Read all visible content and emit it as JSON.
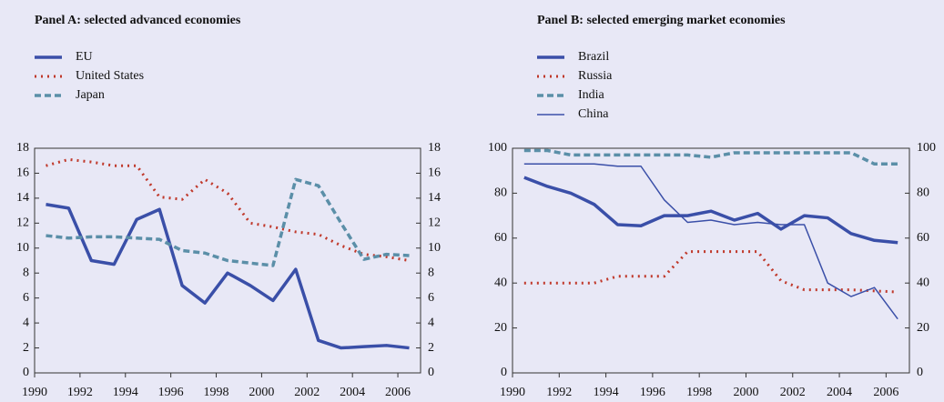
{
  "chart_data": [
    {
      "type": "line",
      "title": "Panel A: selected advanced economies",
      "x": [
        1990.5,
        1991.5,
        1992.5,
        1993.5,
        1994.5,
        1995.5,
        1996.5,
        1997.5,
        1998.5,
        1999.5,
        2000.5,
        2001.5,
        2002.5,
        2003.5,
        2004.5,
        2005.5,
        2006.5
      ],
      "series": [
        {
          "name": "EU",
          "color": "#3a4fa8",
          "style": "solid",
          "width": 3.5,
          "values": [
            13.5,
            13.2,
            9.0,
            8.7,
            12.3,
            13.1,
            7.0,
            5.6,
            8.0,
            7.0,
            5.8,
            8.3,
            2.6,
            2.0,
            2.1,
            2.2,
            2.0
          ]
        },
        {
          "name": "United States",
          "color": "#c0392b",
          "style": "dotted",
          "width": 3,
          "values": [
            16.6,
            17.1,
            16.9,
            16.6,
            16.6,
            14.1,
            13.9,
            15.5,
            14.4,
            12.0,
            11.7,
            11.3,
            11.1,
            10.2,
            9.5,
            9.3,
            9.0
          ]
        },
        {
          "name": "Japan",
          "color": "#5b8fa8",
          "style": "dashed",
          "width": 3.5,
          "values": [
            11.0,
            10.8,
            10.9,
            10.9,
            10.8,
            10.7,
            9.8,
            9.6,
            9.0,
            8.8,
            8.6,
            15.5,
            15.0,
            12.0,
            9.1,
            9.5,
            9.4
          ]
        }
      ],
      "xlim": [
        1990,
        2007
      ],
      "xticks": [
        1990,
        1992,
        1994,
        1996,
        1998,
        2000,
        2002,
        2004,
        2006
      ],
      "ylim": [
        0,
        18
      ],
      "yticks": [
        0,
        2,
        4,
        6,
        8,
        10,
        12,
        14,
        16,
        18
      ]
    },
    {
      "type": "line",
      "title": "Panel B: selected emerging market economies",
      "x": [
        1990.5,
        1991.5,
        1992.5,
        1993.5,
        1994.5,
        1995.5,
        1996.5,
        1997.5,
        1998.5,
        1999.5,
        2000.5,
        2001.5,
        2002.5,
        2003.5,
        2004.5,
        2005.5,
        2006.5
      ],
      "series": [
        {
          "name": "Brazil",
          "color": "#3a4fa8",
          "style": "solid",
          "width": 3.5,
          "values": [
            87,
            83,
            80,
            75,
            66,
            65.5,
            70,
            70,
            72,
            68,
            71,
            64,
            70,
            69,
            62,
            59,
            58
          ]
        },
        {
          "name": "Russia",
          "color": "#c0392b",
          "style": "dotted",
          "width": 3,
          "values": [
            40,
            40,
            40,
            40,
            43,
            43,
            43,
            54,
            54,
            54,
            54,
            41,
            37,
            37,
            37,
            36.5,
            36
          ]
        },
        {
          "name": "India",
          "color": "#5b8fa8",
          "style": "dashed",
          "width": 3.5,
          "values": [
            99,
            99,
            97,
            97,
            97,
            97,
            97,
            97,
            96,
            98,
            98,
            98,
            98,
            98,
            98,
            93,
            93
          ]
        },
        {
          "name": "China",
          "color": "#3a4fa8",
          "style": "solid",
          "width": 1.5,
          "values": [
            93,
            93,
            93,
            93,
            92,
            92,
            77,
            67,
            68,
            66,
            67,
            66,
            66,
            40,
            34,
            38,
            24
          ]
        }
      ],
      "xlim": [
        1990,
        2007
      ],
      "xticks": [
        1990,
        1992,
        1994,
        1996,
        1998,
        2000,
        2002,
        2004,
        2006
      ],
      "ylim": [
        0,
        100
      ],
      "yticks": [
        0,
        20,
        40,
        60,
        80,
        100
      ]
    }
  ]
}
